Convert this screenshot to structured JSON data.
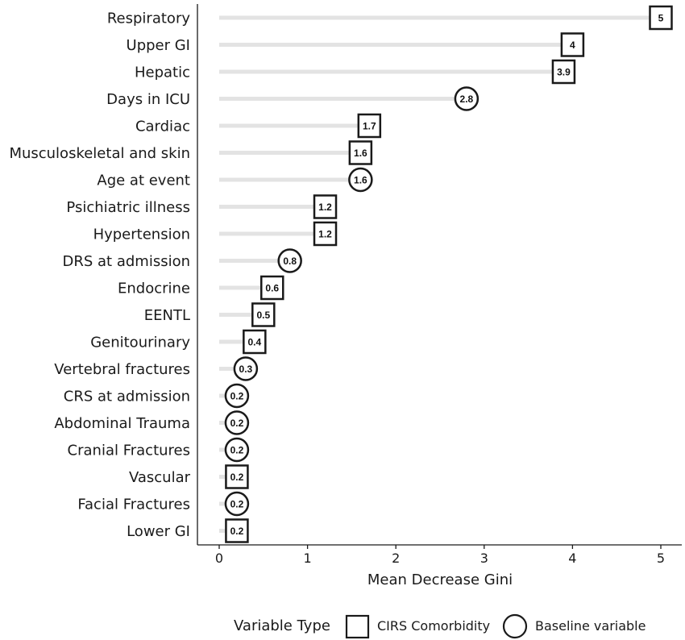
{
  "chart_data": {
    "type": "lollipop",
    "title": "",
    "xlabel": "Mean Decrease Gini",
    "ylabel": "",
    "xlim": [
      0,
      5.2
    ],
    "xticks": [
      0,
      1,
      2,
      3,
      4,
      5
    ],
    "grid": false,
    "categories": [
      "Respiratory",
      "Upper GI",
      "Hepatic",
      "Days in ICU",
      "Cardiac",
      "Musculoskeletal and skin",
      "Age at event",
      "Psichiatric illness",
      "Hypertension",
      "DRS at admission",
      "Endocrine",
      "EENTL",
      "Genitourinary",
      "Vertebral fractures",
      "CRS at admission",
      "Abdominal Trauma",
      "Cranial Fractures",
      "Vascular",
      "Facial Fractures",
      "Lower GI"
    ],
    "values": [
      5.0,
      4.0,
      3.9,
      2.8,
      1.7,
      1.6,
      1.6,
      1.2,
      1.2,
      0.8,
      0.6,
      0.5,
      0.4,
      0.3,
      0.2,
      0.2,
      0.2,
      0.2,
      0.2,
      0.2
    ],
    "value_labels": [
      "5",
      "4",
      "3.9",
      "2.8",
      "1.7",
      "1.6",
      "1.6",
      "1.2",
      "1.2",
      "0.8",
      "0.6",
      "0.5",
      "0.4",
      "0.3",
      "0.2",
      "0.2",
      "0.2",
      "0.2",
      "0.2",
      "0.2"
    ],
    "types": [
      "CIRS",
      "CIRS",
      "CIRS",
      "Baseline",
      "CIRS",
      "CIRS",
      "Baseline",
      "CIRS",
      "CIRS",
      "Baseline",
      "CIRS",
      "CIRS",
      "CIRS",
      "Baseline",
      "Baseline",
      "Baseline",
      "Baseline",
      "CIRS",
      "Baseline",
      "CIRS"
    ],
    "legend": {
      "title": "Variable Type",
      "position": "bottom",
      "entries": [
        {
          "key": "CIRS",
          "label": "CIRS Comorbidity",
          "shape": "square"
        },
        {
          "key": "Baseline",
          "label": "Baseline variable",
          "shape": "circle"
        }
      ]
    },
    "colors": {
      "stem": "#e3e3e3",
      "marker_stroke": "#1a1a1a",
      "marker_fill": "#ffffff",
      "axis": "#1a1a1a"
    }
  }
}
